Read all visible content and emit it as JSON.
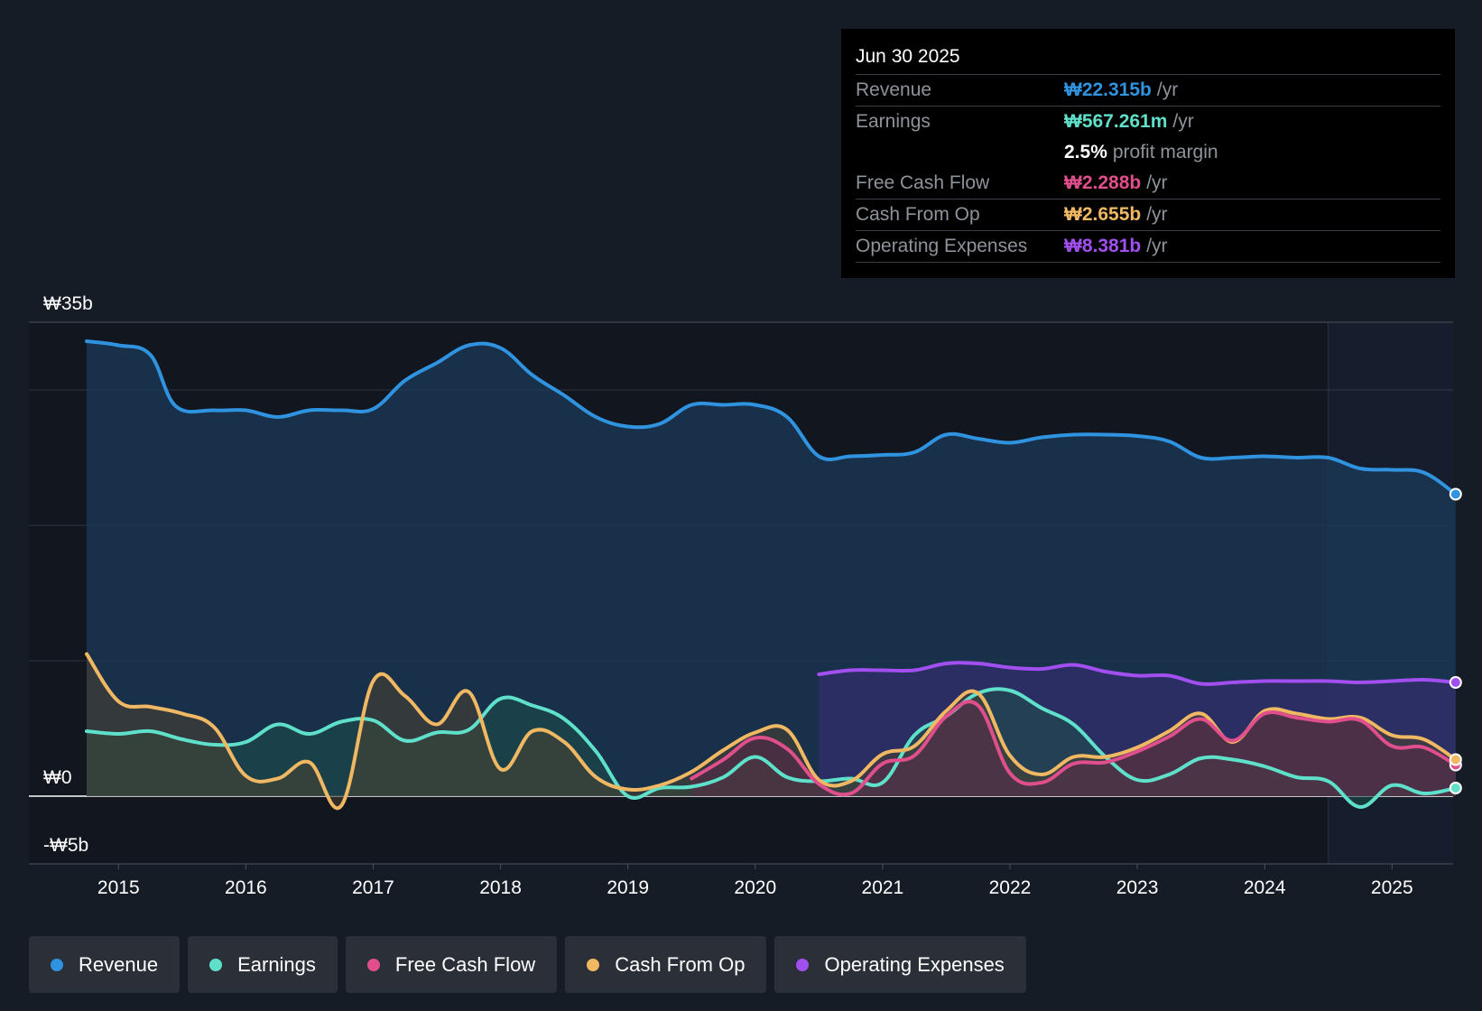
{
  "chart_data": {
    "type": "area",
    "title": "",
    "currency": "₩",
    "y_ticks": [
      {
        "value": 35,
        "label": "₩35b"
      },
      {
        "value": 0,
        "label": "₩0"
      },
      {
        "value": -5,
        "label": "-₩5b"
      }
    ],
    "ylim": [
      -5,
      35
    ],
    "xlim": [
      2014.75,
      2025.5
    ],
    "x_ticks": [
      {
        "value": 2015,
        "label": "2015"
      },
      {
        "value": 2016,
        "label": "2016"
      },
      {
        "value": 2017,
        "label": "2017"
      },
      {
        "value": 2018,
        "label": "2018"
      },
      {
        "value": 2019,
        "label": "2019"
      },
      {
        "value": 2020,
        "label": "2020"
      },
      {
        "value": 2021,
        "label": "2021"
      },
      {
        "value": 2022,
        "label": "2022"
      },
      {
        "value": 2023,
        "label": "2023"
      },
      {
        "value": 2024,
        "label": "2024"
      },
      {
        "value": 2025,
        "label": "2025"
      }
    ],
    "forecast_start": 2024.5,
    "series": [
      {
        "name": "Revenue",
        "key": "revenue",
        "color": "#2f93e0",
        "fill": "#1b3a58",
        "x": [
          2014.75,
          2015.0,
          2015.25,
          2015.45,
          2015.75,
          2016.0,
          2016.25,
          2016.5,
          2016.75,
          2017.0,
          2017.25,
          2017.5,
          2017.75,
          2018.0,
          2018.25,
          2018.5,
          2018.75,
          2019.0,
          2019.25,
          2019.5,
          2019.75,
          2020.0,
          2020.25,
          2020.5,
          2020.75,
          2021.0,
          2021.25,
          2021.5,
          2021.75,
          2022.0,
          2022.25,
          2022.5,
          2022.75,
          2023.0,
          2023.25,
          2023.5,
          2023.75,
          2024.0,
          2024.25,
          2024.5,
          2024.75,
          2025.0,
          2025.25,
          2025.5
        ],
        "values": [
          33.6,
          33.3,
          32.6,
          28.8,
          28.5,
          28.5,
          28.0,
          28.5,
          28.5,
          28.6,
          30.7,
          32.0,
          33.3,
          33.1,
          31.1,
          29.6,
          28.0,
          27.3,
          27.5,
          28.9,
          28.9,
          28.9,
          28.0,
          25.1,
          25.1,
          25.2,
          25.4,
          26.7,
          26.4,
          26.1,
          26.5,
          26.7,
          26.7,
          26.6,
          26.2,
          25.0,
          25.0,
          25.1,
          25.0,
          25.0,
          24.2,
          24.1,
          23.9,
          22.3
        ]
      },
      {
        "name": "Earnings",
        "key": "earnings",
        "color": "#5fe0cb",
        "fill": "#1e5049",
        "x": [
          2014.75,
          2015.0,
          2015.25,
          2015.5,
          2015.75,
          2016.0,
          2016.25,
          2016.5,
          2016.75,
          2017.0,
          2017.25,
          2017.5,
          2017.75,
          2018.0,
          2018.25,
          2018.5,
          2018.75,
          2019.0,
          2019.25,
          2019.5,
          2019.75,
          2020.0,
          2020.25,
          2020.5,
          2020.75,
          2021.0,
          2021.25,
          2021.5,
          2021.75,
          2022.0,
          2022.25,
          2022.5,
          2022.75,
          2023.0,
          2023.25,
          2023.5,
          2023.75,
          2024.0,
          2024.25,
          2024.5,
          2024.75,
          2025.0,
          2025.25,
          2025.5
        ],
        "values": [
          4.8,
          4.6,
          4.8,
          4.2,
          3.8,
          4.0,
          5.3,
          4.6,
          5.5,
          5.6,
          4.1,
          4.7,
          4.9,
          7.2,
          6.7,
          5.7,
          3.3,
          0.0,
          0.6,
          0.7,
          1.4,
          2.9,
          1.4,
          1.1,
          1.3,
          1.0,
          4.5,
          5.9,
          7.6,
          7.8,
          6.5,
          5.3,
          2.9,
          1.2,
          1.6,
          2.8,
          2.7,
          2.2,
          1.4,
          1.1,
          -0.8,
          0.8,
          0.2,
          0.6
        ]
      },
      {
        "name": "Free Cash Flow",
        "key": "fcf",
        "color": "#e04e8c",
        "fill": "#5a2a48",
        "x": [
          2019.5,
          2019.75,
          2020.0,
          2020.25,
          2020.5,
          2020.75,
          2021.0,
          2021.25,
          2021.5,
          2021.75,
          2022.0,
          2022.25,
          2022.5,
          2022.75,
          2023.0,
          2023.25,
          2023.5,
          2023.75,
          2024.0,
          2024.25,
          2024.5,
          2024.75,
          2025.0,
          2025.25,
          2025.5
        ],
        "values": [
          1.3,
          2.7,
          4.3,
          3.5,
          0.9,
          0.2,
          2.4,
          3.0,
          5.9,
          6.7,
          1.7,
          1.0,
          2.4,
          2.5,
          3.3,
          4.4,
          5.7,
          4.1,
          6.1,
          5.8,
          5.5,
          5.6,
          3.7,
          3.6,
          2.3
        ]
      },
      {
        "name": "Cash From Op",
        "key": "cfo",
        "color": "#f0b862",
        "fill": "#4d4230",
        "x": [
          2014.75,
          2015.0,
          2015.25,
          2015.5,
          2015.75,
          2016.0,
          2016.25,
          2016.5,
          2016.75,
          2017.0,
          2017.25,
          2017.5,
          2017.75,
          2018.0,
          2018.25,
          2018.5,
          2018.75,
          2019.0,
          2019.25,
          2019.5,
          2019.75,
          2020.0,
          2020.25,
          2020.5,
          2020.75,
          2021.0,
          2021.25,
          2021.5,
          2021.75,
          2022.0,
          2022.25,
          2022.5,
          2022.75,
          2023.0,
          2023.25,
          2023.5,
          2023.75,
          2024.0,
          2024.25,
          2024.5,
          2024.75,
          2025.0,
          2025.25,
          2025.5
        ],
        "values": [
          10.5,
          7.0,
          6.6,
          6.1,
          5.1,
          1.5,
          1.3,
          2.5,
          -0.7,
          8.5,
          7.4,
          5.3,
          7.7,
          2.0,
          4.8,
          4.0,
          1.4,
          0.5,
          0.8,
          1.8,
          3.4,
          4.7,
          4.9,
          1.2,
          1.1,
          3.1,
          3.7,
          6.3,
          7.6,
          3.0,
          1.6,
          2.9,
          2.9,
          3.6,
          4.8,
          6.1,
          4.0,
          6.3,
          6.1,
          5.7,
          5.8,
          4.5,
          4.2,
          2.7
        ]
      },
      {
        "name": "Operating Expenses",
        "key": "opex",
        "color": "#a24ff0",
        "fill": "#3a2e78",
        "x": [
          2020.5,
          2020.75,
          2021.0,
          2021.25,
          2021.5,
          2021.75,
          2022.0,
          2022.25,
          2022.5,
          2022.75,
          2023.0,
          2023.25,
          2023.5,
          2023.75,
          2024.0,
          2024.25,
          2024.5,
          2024.75,
          2025.0,
          2025.25,
          2025.5
        ],
        "values": [
          9.0,
          9.3,
          9.3,
          9.3,
          9.8,
          9.8,
          9.5,
          9.4,
          9.7,
          9.2,
          8.9,
          8.9,
          8.3,
          8.4,
          8.5,
          8.5,
          8.5,
          8.4,
          8.5,
          8.6,
          8.4
        ]
      }
    ],
    "end_markers": [
      "revenue",
      "earnings",
      "fcf",
      "cfo",
      "opex"
    ],
    "legend_position": "bottom-left"
  },
  "tooltip": {
    "date": "Jun 30 2025",
    "rows": [
      {
        "label": "Revenue",
        "value": "₩22.315b",
        "unit": "/yr",
        "color": "#2f93e0"
      },
      {
        "label": "Earnings",
        "value": "₩567.261m",
        "unit": "/yr",
        "color": "#5fe0cb"
      },
      {
        "label": "",
        "value": "2.5%",
        "unit": "profit margin",
        "color": "#ffffff"
      },
      {
        "label": "Free Cash Flow",
        "value": "₩2.288b",
        "unit": "/yr",
        "color": "#e04e8c"
      },
      {
        "label": "Cash From Op",
        "value": "₩2.655b",
        "unit": "/yr",
        "color": "#f0b862"
      },
      {
        "label": "Operating Expenses",
        "value": "₩8.381b",
        "unit": "/yr",
        "color": "#a24ff0"
      }
    ]
  },
  "legend": [
    {
      "label": "Revenue",
      "color": "#2f93e0"
    },
    {
      "label": "Earnings",
      "color": "#5fe0cb"
    },
    {
      "label": "Free Cash Flow",
      "color": "#e04e8c"
    },
    {
      "label": "Cash From Op",
      "color": "#f0b862"
    },
    {
      "label": "Operating Expenses",
      "color": "#a24ff0"
    }
  ]
}
